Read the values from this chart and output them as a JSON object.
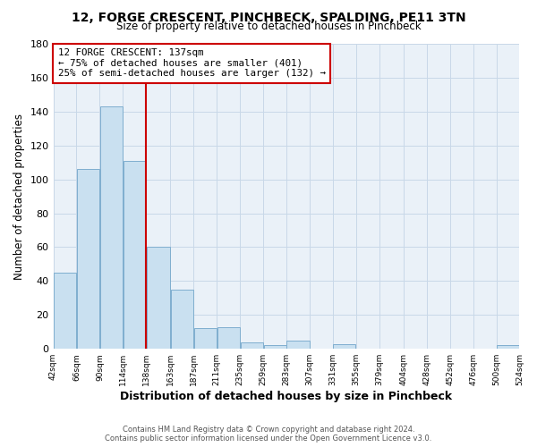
{
  "title": "12, FORGE CRESCENT, PINCHBECK, SPALDING, PE11 3TN",
  "subtitle": "Size of property relative to detached houses in Pinchbeck",
  "xlabel": "Distribution of detached houses by size in Pinchbeck",
  "ylabel": "Number of detached properties",
  "bar_left_edges": [
    42,
    66,
    90,
    114,
    138,
    163,
    187,
    211,
    235,
    259,
    283,
    307,
    331,
    355,
    379,
    404,
    428,
    452,
    476,
    500
  ],
  "bar_widths": [
    24,
    24,
    24,
    24,
    25,
    24,
    24,
    24,
    24,
    24,
    24,
    24,
    24,
    24,
    25,
    24,
    24,
    24,
    24,
    24
  ],
  "bar_heights": [
    45,
    106,
    143,
    111,
    60,
    35,
    12,
    13,
    4,
    2,
    5,
    0,
    3,
    0,
    0,
    0,
    0,
    0,
    0,
    2
  ],
  "bar_color": "#c9e0f0",
  "bar_edgecolor": "#7faecf",
  "vline_x": 138,
  "vline_color": "#cc0000",
  "annotation_lines": [
    "12 FORGE CRESCENT: 137sqm",
    "← 75% of detached houses are smaller (401)",
    "25% of semi-detached houses are larger (132) →"
  ],
  "ylim": [
    0,
    180
  ],
  "yticks": [
    0,
    20,
    40,
    60,
    80,
    100,
    120,
    140,
    160,
    180
  ],
  "xtick_labels": [
    "42sqm",
    "66sqm",
    "90sqm",
    "114sqm",
    "138sqm",
    "163sqm",
    "187sqm",
    "211sqm",
    "235sqm",
    "259sqm",
    "283sqm",
    "307sqm",
    "331sqm",
    "355sqm",
    "379sqm",
    "404sqm",
    "428sqm",
    "452sqm",
    "476sqm",
    "500sqm",
    "524sqm"
  ],
  "footer_line1": "Contains HM Land Registry data © Crown copyright and database right 2024.",
  "footer_line2": "Contains public sector information licensed under the Open Government Licence v3.0.",
  "grid_color": "#c8d8e8",
  "background_color": "#eaf1f8"
}
